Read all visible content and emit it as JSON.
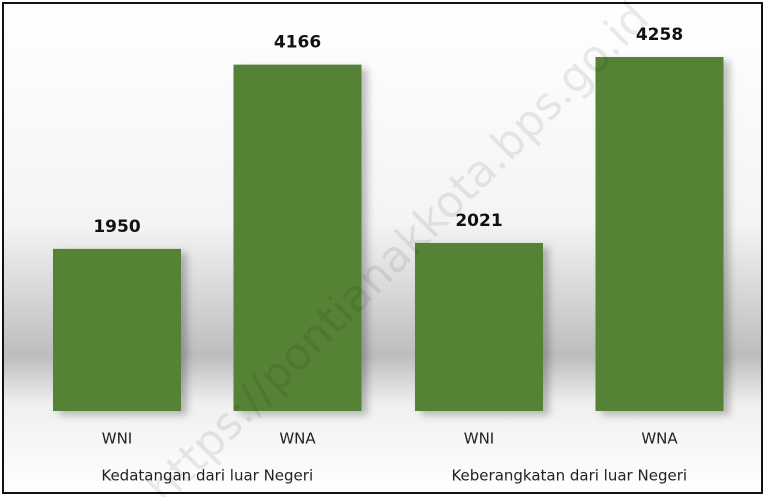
{
  "chart_data": {
    "type": "bar",
    "color": "#548235",
    "groups": [
      {
        "name": "Kedatangan dari luar Negeri",
        "categories": [
          "WNI",
          "WNA"
        ],
        "values": [
          1950,
          4166
        ]
      },
      {
        "name": "Keberangkatan dari luar Negeri",
        "categories": [
          "WNI",
          "WNA"
        ],
        "values": [
          2021,
          4258
        ]
      }
    ],
    "watermark": "https://pontianakkota.bps.go.id"
  }
}
